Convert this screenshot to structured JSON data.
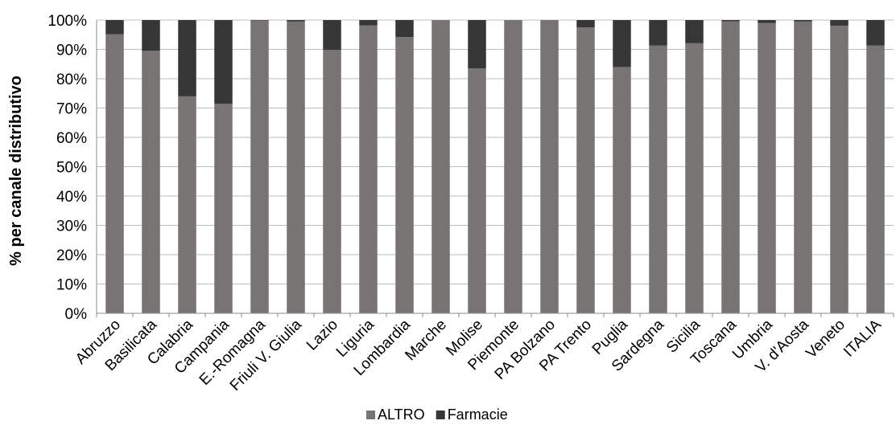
{
  "chart_data": {
    "type": "bar",
    "stacked": true,
    "percent_stacked": true,
    "title": "",
    "xlabel": "",
    "ylabel": "% per canale distributivo",
    "ylim": [
      0,
      100
    ],
    "yticks": [
      "0%",
      "10%",
      "20%",
      "30%",
      "40%",
      "50%",
      "60%",
      "70%",
      "80%",
      "90%",
      "100%"
    ],
    "grid": true,
    "legend_position": "bottom",
    "categories": [
      "Abruzzo",
      "Basilicata",
      "Calabria",
      "Campania",
      "E.-Romagna",
      "Friuli V. Giulia",
      "Lazio",
      "Liguria",
      "Lombardia",
      "Marche",
      "Molise",
      "Piemonte",
      "PA Bolzano",
      "PA Trento",
      "Puglia",
      "Sardegna",
      "Sicilia",
      "Toscana",
      "Umbria",
      "V. d'Aosta",
      "Veneto",
      "ITALIA"
    ],
    "series": [
      {
        "name": "ALTRO",
        "color": "#777473",
        "values": [
          95.2,
          89.5,
          74,
          71.5,
          99.8,
          99.5,
          89.8,
          98.2,
          94.2,
          100,
          83.5,
          100,
          100,
          97.5,
          84,
          91.3,
          92.1,
          99.6,
          99,
          99.5,
          98.1,
          91.3
        ]
      },
      {
        "name": "Farmacie",
        "color": "#363636",
        "values": [
          4.8,
          10.5,
          26,
          28.5,
          0.2,
          0.5,
          10.2,
          1.8,
          5.8,
          0,
          16.5,
          0,
          0,
          2.5,
          16,
          8.7,
          7.9,
          0.4,
          1,
          0.5,
          1.9,
          8.7
        ]
      }
    ]
  }
}
